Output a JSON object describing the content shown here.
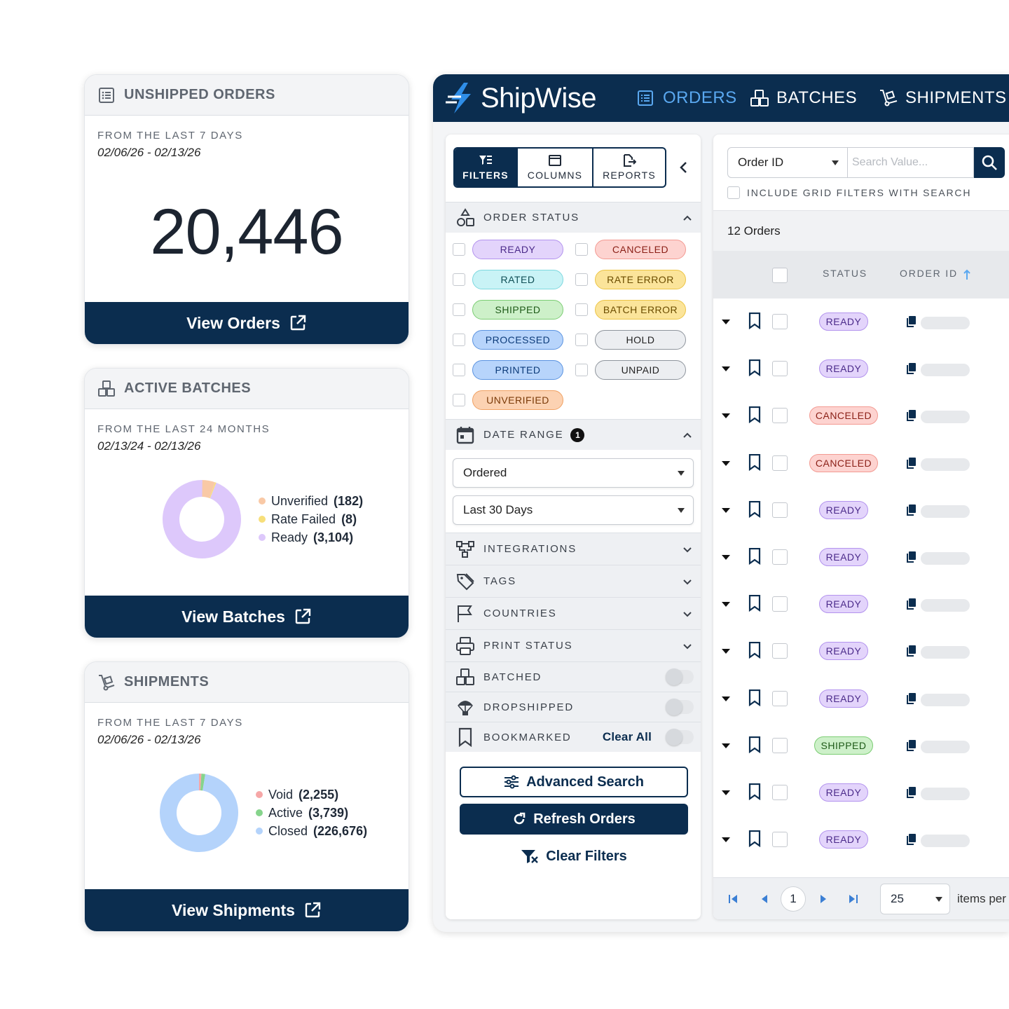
{
  "unshipped": {
    "title": "UNSHIPPED ORDERS",
    "range_label": "FROM THE LAST 7 DAYS",
    "range": "02/06/26 - 02/13/26",
    "count": "20,446",
    "button": "View Orders"
  },
  "batches": {
    "title": "ACTIVE BATCHES",
    "range_label": "FROM THE LAST 24 MONTHS",
    "range": "02/13/24 - 02/13/26",
    "legend": [
      {
        "label": "Unverified",
        "value": "(182)",
        "color": "#f9c9a6",
        "n": 182
      },
      {
        "label": "Rate Failed",
        "value": "(8)",
        "color": "#f7df7a",
        "n": 8
      },
      {
        "label": "Ready",
        "value": "(3,104)",
        "color": "#ddc8fb",
        "n": 3104
      }
    ],
    "button": "View Batches"
  },
  "shipments": {
    "title": "SHIPMENTS",
    "range_label": "FROM THE LAST 7 DAYS",
    "range": "02/06/26 - 02/13/26",
    "legend": [
      {
        "label": "Void",
        "value": "(2,255)",
        "color": "#f6a7a7",
        "n": 2255
      },
      {
        "label": "Active",
        "value": "(3,739)",
        "color": "#86d48c",
        "n": 3739
      },
      {
        "label": "Closed",
        "value": "(226,676)",
        "color": "#b4d3fb",
        "n": 226676
      }
    ],
    "button": "View Shipments"
  },
  "app": {
    "brand": "ShipWise",
    "nav": {
      "orders": "ORDERS",
      "batches": "BATCHES",
      "shipments": "SHIPMENTS"
    },
    "tabs": {
      "filters": "FILTERS",
      "columns": "COLUMNS",
      "reports": "REPORTS"
    },
    "sections": {
      "order_status": "ORDER STATUS",
      "date_range": "DATE RANGE",
      "date_badge": "1",
      "integrations": "INTEGRATIONS",
      "tags": "TAGS",
      "countries": "COUNTRIES",
      "print_status": "PRINT STATUS",
      "batched": "BATCHED",
      "dropshipped": "DROPSHIPPED",
      "bookmarked": "BOOKMARKED",
      "clear_all": "Clear All"
    },
    "statuses": [
      {
        "label": "READY",
        "bg": "#e3d4fb",
        "border": "#b393ee",
        "color": "#4b2a8a"
      },
      {
        "label": "CANCELED",
        "bg": "#fdd3d0",
        "border": "#f39a92",
        "color": "#8a1f16"
      },
      {
        "label": "RATED",
        "bg": "#c9f3f6",
        "border": "#7dd8df",
        "color": "#0f4e55"
      },
      {
        "label": "RATE ERROR",
        "bg": "#fbe49a",
        "border": "#ecc445",
        "color": "#6b4c00"
      },
      {
        "label": "SHIPPED",
        "bg": "#cdf0c9",
        "border": "#7ccd74",
        "color": "#1e5a18"
      },
      {
        "label": "BATCH ERROR",
        "bg": "#fbe49a",
        "border": "#ecc445",
        "color": "#6b4c00"
      },
      {
        "label": "PROCESSED",
        "bg": "#b7d4fb",
        "border": "#5b93e0",
        "color": "#0d3c7a"
      },
      {
        "label": "HOLD",
        "bg": "#eceef1",
        "border": "#8f959d",
        "color": "#222"
      },
      {
        "label": "PRINTED",
        "bg": "#b7d4fb",
        "border": "#5b93e0",
        "color": "#0d3c7a"
      },
      {
        "label": "UNPAID",
        "bg": "#eceef1",
        "border": "#8f959d",
        "color": "#222"
      },
      {
        "label": "UNVERIFIED",
        "bg": "#fcd2b2",
        "border": "#f0a163",
        "color": "#7a3a08"
      }
    ],
    "date_type": "Ordered",
    "date_period": "Last 30 Days",
    "advanced_search": "Advanced Search",
    "refresh": "Refresh Orders",
    "clear_filters": "Clear Filters",
    "search_field": "Order ID",
    "search_placeholder": "Search Value...",
    "include_label": "INCLUDE GRID FILTERS WITH SEARCH",
    "order_count": "12 Orders",
    "col_status": "STATUS",
    "col_order_id": "ORDER ID",
    "rows": [
      "READY",
      "READY",
      "CANCELED",
      "CANCELED",
      "READY",
      "READY",
      "READY",
      "READY",
      "READY",
      "SHIPPED",
      "READY",
      "READY"
    ],
    "page": "1",
    "page_size": "25",
    "items_per": "items per"
  },
  "colors": {
    "navy": "#0b2d4f",
    "accent": "#5aa8f0"
  }
}
